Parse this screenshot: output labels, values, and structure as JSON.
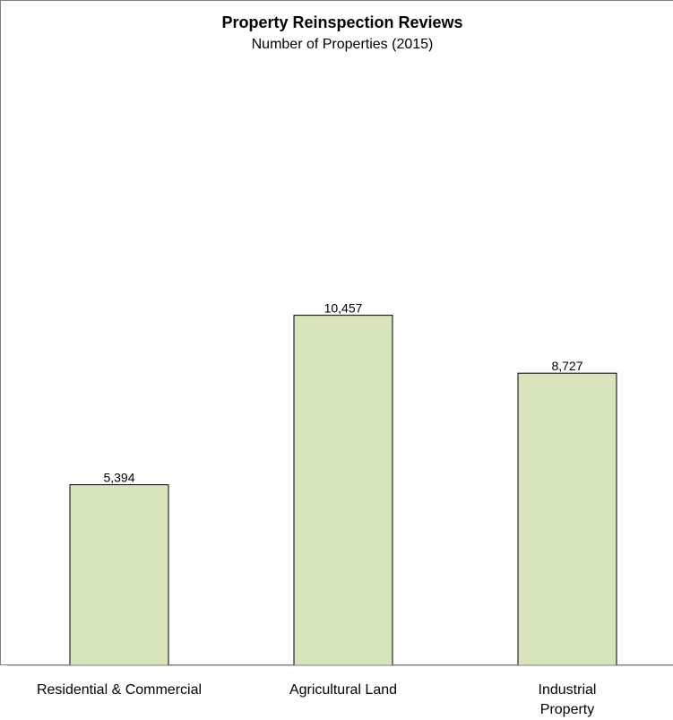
{
  "chart_data": {
    "type": "bar",
    "title": "Property Reinspection Reviews",
    "subtitle": "Number of Properties (2015)",
    "categories": [
      "Residential & Commercial",
      "Agricultural Land",
      "Industrial Property"
    ],
    "category_label_lines": [
      [
        "Residential & Commercial"
      ],
      [
        "Agricultural Land"
      ],
      [
        "Industrial",
        "Property"
      ]
    ],
    "values": [
      5394,
      10457,
      8727
    ],
    "value_labels": [
      "5,394",
      "10,457",
      "8,727"
    ],
    "ylim": [
      0,
      18000
    ],
    "grid": false,
    "legend": false,
    "colors": {
      "bar_fill": "#d8e4bc",
      "bar_stroke": "#000000",
      "axis": "#808080",
      "frame": "#808080"
    }
  }
}
